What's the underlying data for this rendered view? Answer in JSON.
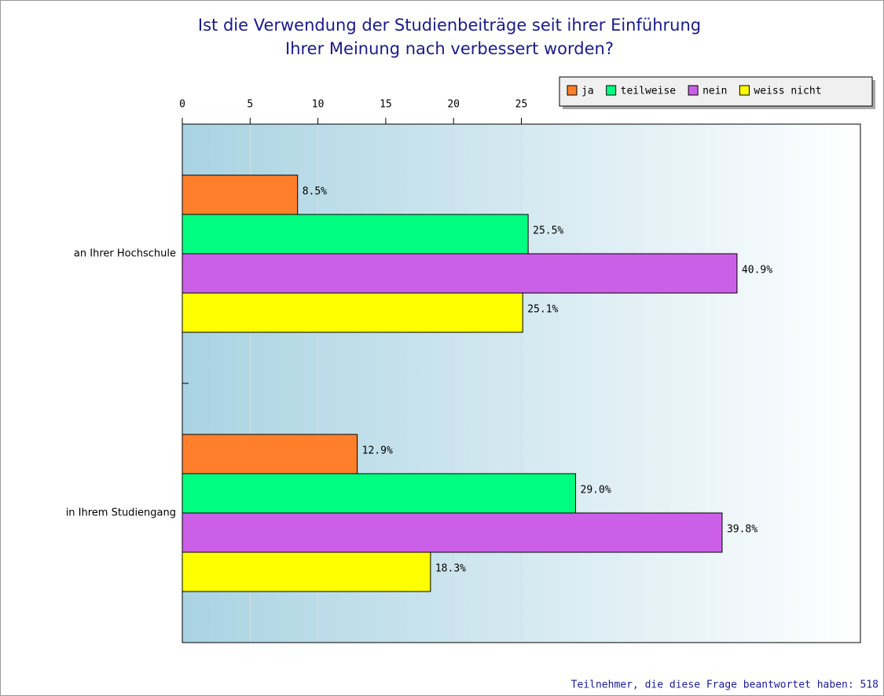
{
  "chart_data": {
    "type": "bar",
    "orientation": "horizontal",
    "title": [
      "Ist die Verwendung der Studienbeiträge seit ihrer Einführung",
      "Ihrer Meinung nach verbessert worden?"
    ],
    "categories": [
      "an Ihrer Hochschule",
      "in Ihrem Studiengang"
    ],
    "series": [
      {
        "name": "ja",
        "color": "#ff7f2a",
        "values": [
          8.5,
          12.9
        ],
        "value_labels": [
          "8.5%",
          "12.9%"
        ]
      },
      {
        "name": "teilweise",
        "color": "#00ff80",
        "values": [
          25.5,
          29.0
        ],
        "value_labels": [
          "25.5%",
          "29.0%"
        ]
      },
      {
        "name": "nein",
        "color": "#cc5fe8",
        "values": [
          40.9,
          39.8
        ],
        "value_labels": [
          "40.9%",
          "39.8%"
        ]
      },
      {
        "name": "weiss nicht",
        "color": "#ffff00",
        "values": [
          25.1,
          18.3
        ],
        "value_labels": [
          "25.1%",
          "18.3%"
        ]
      }
    ],
    "xlim": [
      0,
      50
    ],
    "xticks": [
      0,
      5,
      10,
      15,
      20,
      25
    ],
    "grid": true,
    "legend": "top-right",
    "footnote": "Teilnehmer, die diese Frage beantwortet haben: 518"
  }
}
